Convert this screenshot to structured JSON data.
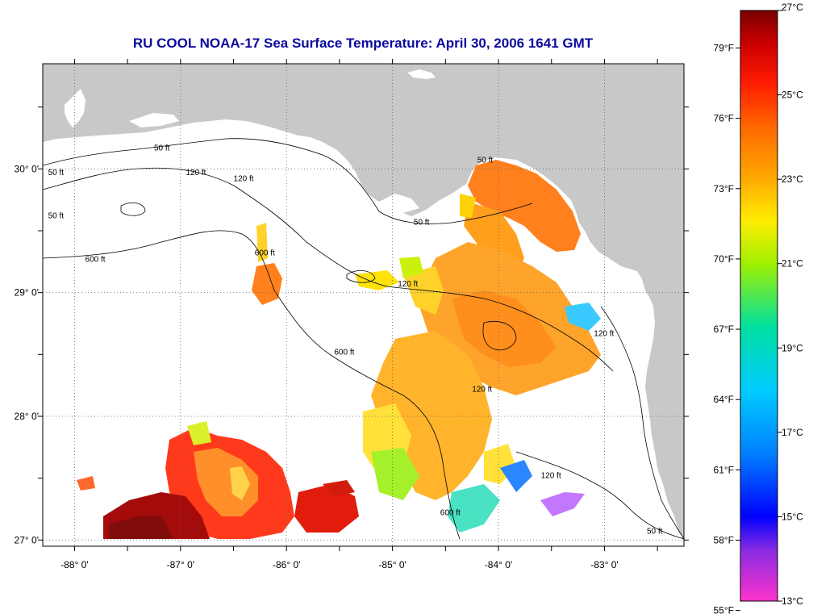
{
  "title": "RU COOL  NOAA-17  Sea Surface Temperature:  April 30, 2006 1641 GMT",
  "map": {
    "lon_range": [
      -88.3,
      -82.25
    ],
    "lat_range": [
      26.95,
      30.85
    ],
    "lon_ticks": [
      {
        "value": -88,
        "label": "-88° 0'"
      },
      {
        "value": -87,
        "label": "-87° 0'"
      },
      {
        "value": -86,
        "label": "-86° 0'"
      },
      {
        "value": -85,
        "label": "-85° 0'"
      },
      {
        "value": -84,
        "label": "-84° 0'"
      },
      {
        "value": -83,
        "label": "-83° 0'"
      }
    ],
    "lat_ticks": [
      {
        "value": 27,
        "label": "27° 0'"
      },
      {
        "value": 28,
        "label": "28° 0'"
      },
      {
        "value": 29,
        "label": "29° 0'"
      },
      {
        "value": 30,
        "label": "30° 0'"
      }
    ],
    "grid": "dotted",
    "land_color": "#c8c8c8",
    "ocean_color": "#ffffff",
    "isobath_labels": [
      {
        "text": "50 ft",
        "lon": -87.25,
        "lat": 30.15
      },
      {
        "text": "120 ft",
        "lon": -86.95,
        "lat": 29.95
      },
      {
        "text": "50 ft",
        "lon": -88.25,
        "lat": 29.95
      },
      {
        "text": "50 ft",
        "lon": -88.25,
        "lat": 29.6
      },
      {
        "text": "600 ft",
        "lon": -87.9,
        "lat": 29.25
      },
      {
        "text": "120 ft",
        "lon": -86.5,
        "lat": 29.9
      },
      {
        "text": "600 ft",
        "lon": -86.3,
        "lat": 29.3
      },
      {
        "text": "50 ft",
        "lon": -84.8,
        "lat": 29.55
      },
      {
        "text": "120 ft",
        "lon": -84.95,
        "lat": 29.05
      },
      {
        "text": "600 ft",
        "lon": -85.55,
        "lat": 28.5
      },
      {
        "text": "50 ft",
        "lon": -84.2,
        "lat": 30.05
      },
      {
        "text": "120 ft",
        "lon": -84.25,
        "lat": 28.2
      },
      {
        "text": "120 ft",
        "lon": -83.1,
        "lat": 28.65
      },
      {
        "text": "600 ft",
        "lon": -84.55,
        "lat": 27.2
      },
      {
        "text": "120 ft",
        "lon": -83.6,
        "lat": 27.5
      },
      {
        "text": "50 ft",
        "lon": -82.6,
        "lat": 27.05
      }
    ]
  },
  "colorbar": {
    "celsius_min": 13,
    "celsius_max": 27,
    "fahrenheit_labels": [
      "79°F",
      "76°F",
      "73°F",
      "70°F",
      "67°F",
      "64°F",
      "61°F",
      "58°F",
      "55°F"
    ],
    "fahrenheit_values": [
      79,
      76,
      73,
      70,
      67,
      64,
      61,
      58,
      55
    ],
    "celsius_labels": [
      "27°C",
      "25°C",
      "23°C",
      "21°C",
      "19°C",
      "17°C",
      "15°C",
      "13°C"
    ],
    "celsius_values": [
      27,
      25,
      23,
      21,
      19,
      17,
      15,
      13
    ],
    "color_stops": [
      {
        "value": 13,
        "color": "#ff33cc"
      },
      {
        "value": 14.2,
        "color": "#8a2be2"
      },
      {
        "value": 15,
        "color": "#0000ff"
      },
      {
        "value": 16.5,
        "color": "#0080ff"
      },
      {
        "value": 18,
        "color": "#00ccff"
      },
      {
        "value": 19.5,
        "color": "#00e0a0"
      },
      {
        "value": 21,
        "color": "#a0f000"
      },
      {
        "value": 22,
        "color": "#ffee00"
      },
      {
        "value": 23,
        "color": "#ffaa00"
      },
      {
        "value": 24.2,
        "color": "#ff6a00"
      },
      {
        "value": 25.3,
        "color": "#ff1a00"
      },
      {
        "value": 26.2,
        "color": "#cc0000"
      },
      {
        "value": 27,
        "color": "#7a0000"
      }
    ]
  }
}
